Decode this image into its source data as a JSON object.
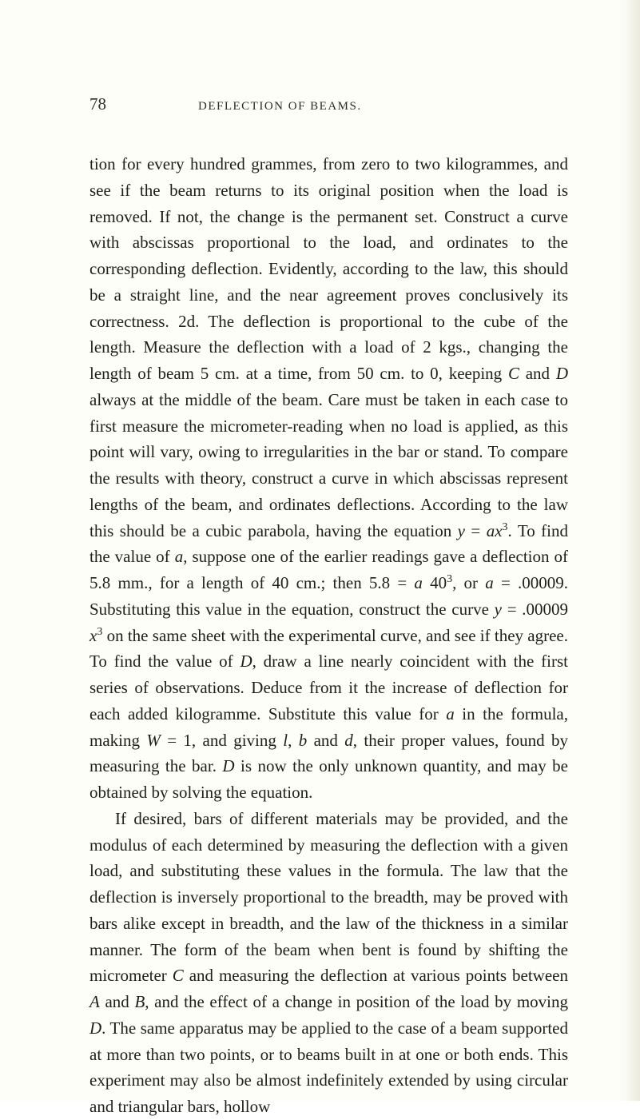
{
  "page": {
    "number": "78",
    "running_title": "DEFLECTION OF BEAMS.",
    "background_color": "#fefef8",
    "text_color": "#1f1f1a",
    "header_color": "#2c2c28",
    "body_fontsize": 21,
    "header_fontsize_number": 21,
    "header_fontsize_title": 15,
    "line_height": 1.56,
    "font_family": "Georgia, 'Times New Roman', serif"
  },
  "paragraphs": [
    {
      "indent": false,
      "html": "tion for every hundred grammes, from zero to two kilogrammes, and see if the beam returns to its original position when the load is removed. If not, the change is the permanent set. Construct a curve with abscissas proportional to the load, and ordinates to the corresponding deflection. Evidently, according to the law, this should be a straight line, and the near agreement proves conclusively its correctness. 2d. The deflection is proportional to the cube of the length. Measure the deflection with a load of 2 kgs., changing the length of beam 5 cm. at a time, from 50 cm. to 0, keeping <span class=\"italic\">C</span> and <span class=\"italic\">D</span> always at the middle of the beam. Care must be taken in each case to first measure the micrometer-reading when no load is applied, as this point will vary, owing to irregularities in the bar or stand. To compare the results with theory, construct a curve in which abscissas represent lengths of the beam, and ordinates deflections. According to the law this should be a cubic parabola, having the equation <span class=\"italic\">y</span> = <span class=\"italic\">ax</span><span class=\"sup\">3</span>. To find the value of <span class=\"italic\">a</span>, suppose one of the earlier readings gave a deflection of 5.8 mm., for a length of 40 cm.; then 5.8 = <span class=\"italic\">a</span> 40<span class=\"sup\">3</span>, or <span class=\"italic\">a</span> = .00009. Substituting this value in the equation, construct the curve <span class=\"italic\">y</span> = .00009 <span class=\"italic\">x</span><span class=\"sup\">3</span> on the same sheet with the experimental curve, and see if they agree. To find the value of <span class=\"italic\">D</span>, draw a line nearly coincident with the first series of observations. Deduce from it the increase of deflection for each added kilogramme. Substitute this value for <span class=\"italic\">a</span> in the formula, making <span class=\"italic\">W</span> = 1, and giving <span class=\"italic\">l</span>, <span class=\"italic\">b</span> and <span class=\"italic\">d</span>, their proper values, found by measuring the bar. <span class=\"italic\">D</span> is now the only unknown quantity, and may be obtained by solving the equation."
    },
    {
      "indent": true,
      "html": "If desired, bars of different materials may be provided, and the modulus of each determined by measuring the deflection with a given load, and substituting these values in the formula. The law that the deflection is inversely proportional to the breadth, may be proved with bars alike except in breadth, and the law of the thickness in a similar manner. The form of the beam when bent is found by shifting the micrometer <span class=\"italic\">C</span> and measuring the deflection at various points between <span class=\"italic\">A</span> and <span class=\"italic\">B</span>, and the effect of a change in position of the load by moving <span class=\"italic\">D</span>. The same apparatus may be applied to the case of a beam supported at more than two points, or to beams built in at one or both ends. This experiment may also be almost indefinitely extended by using circular and triangular bars, hollow"
    }
  ]
}
